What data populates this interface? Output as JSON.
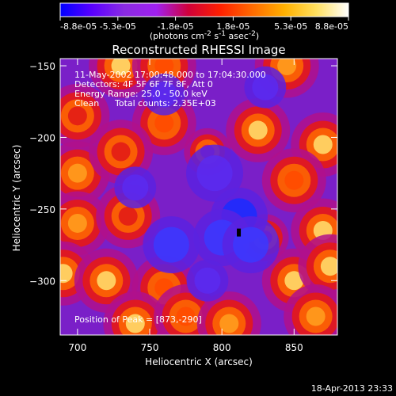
{
  "chart_data": {
    "type": "heatmap",
    "title": "Reconstructed RHESSI Image",
    "xlabel": "Heliocentric X (arcsec)",
    "ylabel": "Heliocentric Y (arcsec)",
    "xlim": [
      688,
      880
    ],
    "ylim": [
      -338,
      -145
    ],
    "x_ticks": [
      700,
      750,
      800,
      850
    ],
    "y_ticks": [
      -150,
      -200,
      -250,
      -300
    ],
    "colorbar": {
      "min": -8.8e-05,
      "max": 8.8e-05,
      "tick_labels": [
        "-8.8e-05",
        "-5.3e-05",
        "-1.8e-05",
        "1.8e-05",
        "5.3e-05",
        "8.8e-05"
      ],
      "unit_main": "(photons cm",
      "unit_exp1": "-2",
      "unit_mid": " s",
      "unit_exp2": "-1",
      "unit_end": " asec",
      "unit_exp3": "-2",
      "unit_close": ")",
      "colors": [
        "#0000ff",
        "#5a00ff",
        "#8a2be2",
        "#a020f0",
        "#d0003a",
        "#ff2000",
        "#ff6a00",
        "#ffb000",
        "#ffe060",
        "#ffffff"
      ]
    },
    "annotations": {
      "line1": "11-May-2002 17:00:48.000 to 17:04:30.000",
      "line2": "Detectors: 4F 5F 6F 7F 8F, Att 0",
      "line3": "Energy Range: 25.0 - 50.0 keV",
      "line4_a": "Clean",
      "line4_b": "Total counts: 2.35E+03",
      "peak": "Position of Peak = [873,-290]"
    },
    "blobs": [
      {
        "x": 730,
        "y": -150,
        "v": 1.0
      },
      {
        "x": 760,
        "y": -150,
        "v": 0.8
      },
      {
        "x": 845,
        "y": -150,
        "v": 0.9
      },
      {
        "x": 700,
        "y": -185,
        "v": 0.7
      },
      {
        "x": 760,
        "y": -190,
        "v": 0.8
      },
      {
        "x": 825,
        "y": -195,
        "v": 1.0
      },
      {
        "x": 870,
        "y": -205,
        "v": 1.0
      },
      {
        "x": 700,
        "y": -225,
        "v": 0.9
      },
      {
        "x": 730,
        "y": -210,
        "v": 0.7
      },
      {
        "x": 850,
        "y": -230,
        "v": 0.8
      },
      {
        "x": 870,
        "y": -265,
        "v": 1.0
      },
      {
        "x": 700,
        "y": -260,
        "v": 0.9
      },
      {
        "x": 735,
        "y": -255,
        "v": 0.6
      },
      {
        "x": 690,
        "y": -295,
        "v": 1.0
      },
      {
        "x": 720,
        "y": -300,
        "v": 1.0
      },
      {
        "x": 760,
        "y": -305,
        "v": 0.8
      },
      {
        "x": 740,
        "y": -330,
        "v": 1.0
      },
      {
        "x": 775,
        "y": -325,
        "v": 0.8
      },
      {
        "x": 805,
        "y": -330,
        "v": 0.9
      },
      {
        "x": 850,
        "y": -300,
        "v": 1.0
      },
      {
        "x": 875,
        "y": -290,
        "v": 1.0
      },
      {
        "x": 865,
        "y": -325,
        "v": 0.9
      },
      {
        "x": 830,
        "y": -270,
        "v": 0.5
      },
      {
        "x": 790,
        "y": -210,
        "v": 0.5
      },
      {
        "x": 812,
        "y": -255,
        "v": -1.0
      },
      {
        "x": 800,
        "y": -270,
        "v": -0.8
      },
      {
        "x": 820,
        "y": -275,
        "v": -0.7
      },
      {
        "x": 795,
        "y": -225,
        "v": -0.6
      },
      {
        "x": 765,
        "y": -275,
        "v": -0.7
      },
      {
        "x": 740,
        "y": -235,
        "v": -0.5
      },
      {
        "x": 790,
        "y": -300,
        "v": -0.5
      },
      {
        "x": 760,
        "y": -170,
        "v": -0.5
      },
      {
        "x": 830,
        "y": -165,
        "v": -0.4
      }
    ]
  },
  "timestamp": "18-Apr-2013 23:33"
}
